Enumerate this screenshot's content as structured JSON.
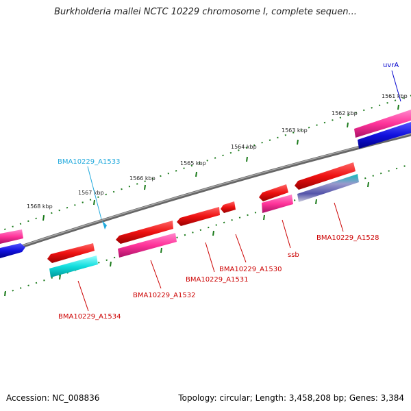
{
  "title": "Burkholderia mallei NCTC 10229 chromosome I, complete sequen...",
  "footer": {
    "accession": "Accession: NC_008836",
    "info": "Topology: circular; Length: 3,458,208 bp; Genes: 3,384"
  },
  "colors": {
    "backbone": "#888888",
    "tick": "#1a7a1a",
    "cds": "#ee1111",
    "rrna": "#ff3399",
    "blue": "#1111dd",
    "cyan": "#11dddd",
    "label_red": "#cc0000",
    "label_blue": "#0000cc",
    "label_cyan": "#22aadd"
  },
  "scale": {
    "unit": "kbp",
    "major_ticks": [
      {
        "label": "1561 kbp",
        "kbp": 1561
      },
      {
        "label": "1562 kbp",
        "kbp": 1562
      },
      {
        "label": "1563 kbp",
        "kbp": 1563
      },
      {
        "label": "1564 kbp",
        "kbp": 1564
      },
      {
        "label": "1565 kbp",
        "kbp": 1565
      },
      {
        "label": "1566 kbp",
        "kbp": 1566
      },
      {
        "label": "1567 kbp",
        "kbp": 1567
      },
      {
        "label": "1568 kbp",
        "kbp": 1568
      }
    ]
  },
  "gene_labels": [
    {
      "text": "uvrA",
      "color": "blue"
    },
    {
      "text": "BMA10229_A1533",
      "color": "cyan"
    },
    {
      "text": "BMA10229_A1528",
      "color": "red"
    },
    {
      "text": "ssb",
      "color": "red"
    },
    {
      "text": "BMA10229_A1530",
      "color": "red"
    },
    {
      "text": "BMA10229_A1531",
      "color": "red"
    },
    {
      "text": "BMA10229_A1532",
      "color": "red"
    },
    {
      "text": "BMA10229_A1534",
      "color": "red"
    }
  ]
}
